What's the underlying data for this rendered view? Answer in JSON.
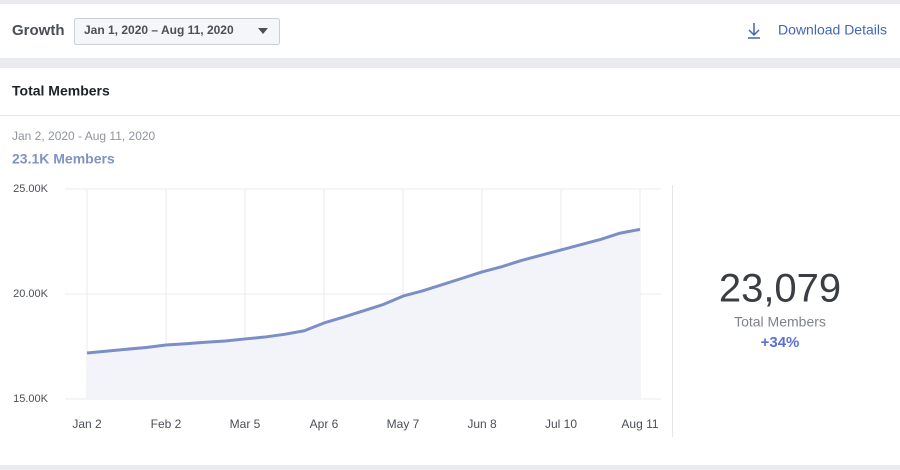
{
  "header": {
    "title": "Growth",
    "date_range": "Jan 1, 2020 – Aug 11, 2020",
    "download": "Download Details"
  },
  "panel": {
    "title": "Total Members",
    "range": "Jan 2, 2020 - Aug 11, 2020",
    "summary": "23.1K Members",
    "big_number": "23,079",
    "big_label": "Total Members",
    "change": "+34%"
  },
  "chart_data": {
    "type": "line",
    "categories": [
      "Jan 2",
      null,
      null,
      null,
      "Feb 2",
      null,
      null,
      null,
      "Mar 5",
      null,
      null,
      null,
      "Apr 6",
      null,
      null,
      null,
      "May 7",
      null,
      null,
      null,
      "Jun 8",
      null,
      null,
      null,
      "Jul 10",
      null,
      null,
      null,
      "Aug 11"
    ],
    "series": [
      {
        "name": "Total Members",
        "color": "#7b8fc6",
        "values": [
          17190,
          17280,
          17370,
          17450,
          17570,
          17630,
          17700,
          17760,
          17860,
          17950,
          18080,
          18250,
          18620,
          18900,
          19200,
          19500,
          19900,
          20150,
          20450,
          20750,
          21050,
          21300,
          21600,
          21850,
          22100,
          22350,
          22600,
          22900,
          23079
        ]
      }
    ],
    "ylim": [
      15000,
      25000
    ],
    "yticks": [
      {
        "value": 15000,
        "label": "15.00K"
      },
      {
        "value": 20000,
        "label": "20.00K"
      },
      {
        "value": 25000,
        "label": "25.00K"
      }
    ],
    "grid": true
  }
}
